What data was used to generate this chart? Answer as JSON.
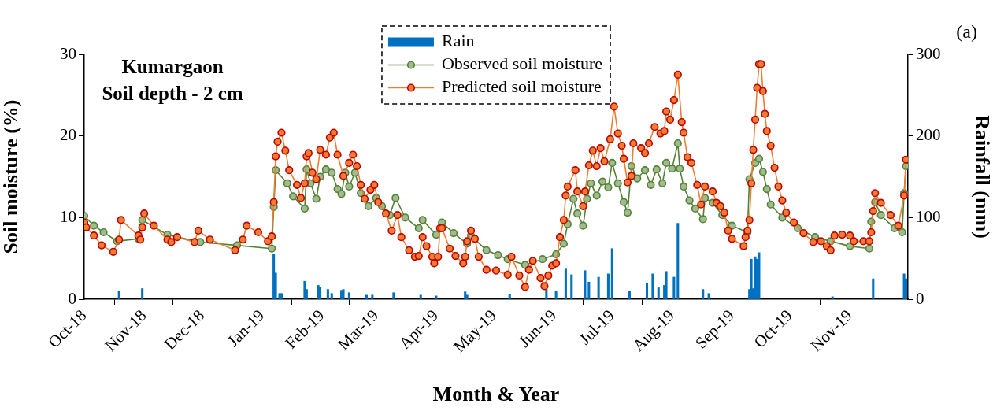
{
  "chart_data": {
    "type": "line",
    "title": "Kumargaon",
    "subtitle": "Soil depth - 2 cm",
    "xlabel": "Month & Year",
    "ylabel": "Soil moisture (%)",
    "y2label": "Rainfall (mm)",
    "annotations": [
      "(a)"
    ],
    "xlim": [
      "2018-10-01",
      "2019-12-01"
    ],
    "xticks": [
      {
        "value": "2018-10-01",
        "label": "Oct-18"
      },
      {
        "value": "2018-11-01",
        "label": "Nov-18"
      },
      {
        "value": "2018-12-01",
        "label": "Dec-18"
      },
      {
        "value": "2019-01-01",
        "label": "Jan-19"
      },
      {
        "value": "2019-02-01",
        "label": "Feb-19"
      },
      {
        "value": "2019-03-01",
        "label": "Mar-19"
      },
      {
        "value": "2019-04-01",
        "label": "Apr-19"
      },
      {
        "value": "2019-05-01",
        "label": "May-19"
      },
      {
        "value": "2019-06-01",
        "label": "Jun-19"
      },
      {
        "value": "2019-07-01",
        "label": "Jul-19"
      },
      {
        "value": "2019-08-01",
        "label": "Aug-19"
      },
      {
        "value": "2019-09-01",
        "label": "Sep-19"
      },
      {
        "value": "2019-10-01",
        "label": "Oct-19"
      },
      {
        "value": "2019-11-01",
        "label": "Nov-19"
      }
    ],
    "ylim": [
      0,
      30
    ],
    "yticks": [
      0,
      10,
      20,
      30
    ],
    "y2lim": [
      0,
      300
    ],
    "y2ticks": [
      0,
      100,
      200,
      300
    ],
    "grid": false,
    "legend": "top",
    "marker": "circle",
    "line_style": "solid",
    "series": [
      {
        "name": "Rain",
        "type": "bar",
        "axis": "y2",
        "color": "#0070c0",
        "x": [
          "2018-10-19",
          "2018-10-31",
          "2019-01-07",
          "2019-01-08",
          "2019-01-10",
          "2019-01-11",
          "2019-01-23",
          "2019-01-24",
          "2019-01-30",
          "2019-01-31",
          "2019-02-04",
          "2019-02-06",
          "2019-02-11",
          "2019-02-12",
          "2019-02-15",
          "2019-02-24",
          "2019-02-27",
          "2019-03-10",
          "2019-03-24",
          "2019-04-01",
          "2019-04-16",
          "2019-04-17",
          "2019-05-09",
          "2019-05-28",
          "2019-06-02",
          "2019-06-07",
          "2019-06-10",
          "2019-06-17",
          "2019-06-19",
          "2019-06-24",
          "2019-06-29",
          "2019-07-01",
          "2019-07-10",
          "2019-07-19",
          "2019-07-22",
          "2019-07-25",
          "2019-07-28",
          "2019-07-29",
          "2019-08-02",
          "2019-08-04",
          "2019-08-17",
          "2019-08-20",
          "2019-09-10",
          "2019-09-11",
          "2019-09-12",
          "2019-09-13",
          "2019-09-14",
          "2019-09-15",
          "2019-10-23",
          "2019-11-13",
          "2019-11-29",
          "2019-11-30"
        ],
        "values": [
          10,
          13,
          55,
          32,
          7,
          7,
          22,
          12,
          17,
          15,
          12,
          7,
          11,
          12,
          8,
          5,
          5,
          8,
          5,
          4,
          9,
          5,
          6,
          12,
          10,
          37,
          30,
          35,
          21,
          27,
          31,
          62,
          10,
          20,
          31,
          14,
          17,
          34,
          27,
          93,
          12,
          7,
          12,
          49,
          13,
          52,
          49,
          57,
          3,
          25,
          31,
          25
        ]
      },
      {
        "name": "Observed soil moisture",
        "color": "#548235",
        "x": [
          "2018-10-01",
          "2018-10-06",
          "2018-10-11",
          "2018-10-18",
          "2018-10-29",
          "2018-10-31",
          "2018-11-13",
          "2018-11-30",
          "2018-12-19",
          "2019-01-06",
          "2019-01-07",
          "2019-01-08",
          "2019-01-14",
          "2019-01-17",
          "2019-01-23",
          "2019-01-24",
          "2019-01-26",
          "2019-01-29",
          "2019-01-31",
          "2019-02-03",
          "2019-02-06",
          "2019-02-09",
          "2019-02-11",
          "2019-02-13",
          "2019-02-15",
          "2019-02-18",
          "2019-02-21",
          "2019-02-25",
          "2019-03-01",
          "2019-03-04",
          "2019-03-08",
          "2019-03-11",
          "2019-03-16",
          "2019-03-23",
          "2019-03-25",
          "2019-04-01",
          "2019-04-04",
          "2019-04-10",
          "2019-04-17",
          "2019-04-19",
          "2019-04-27",
          "2019-05-03",
          "2019-05-08",
          "2019-05-17",
          "2019-05-26",
          "2019-06-02",
          "2019-06-06",
          "2019-06-08",
          "2019-06-11",
          "2019-06-13",
          "2019-06-16",
          "2019-06-18",
          "2019-06-20",
          "2019-06-23",
          "2019-06-26",
          "2019-06-29",
          "2019-07-01",
          "2019-07-04",
          "2019-07-07",
          "2019-07-09",
          "2019-07-11",
          "2019-07-14",
          "2019-07-18",
          "2019-07-21",
          "2019-07-24",
          "2019-07-27",
          "2019-07-29",
          "2019-08-01",
          "2019-08-04",
          "2019-08-05",
          "2019-08-07",
          "2019-08-10",
          "2019-08-13",
          "2019-08-17",
          "2019-08-18",
          "2019-08-22",
          "2019-08-27",
          "2019-09-01",
          "2019-09-09",
          "2019-09-10",
          "2019-09-13",
          "2019-09-15",
          "2019-09-17",
          "2019-09-19",
          "2019-09-21",
          "2019-09-27",
          "2019-10-05",
          "2019-10-14",
          "2019-10-22",
          "2019-11-01",
          "2019-11-11",
          "2019-11-12",
          "2019-11-14",
          "2019-11-17",
          "2019-11-24",
          "2019-11-28",
          "2019-11-29",
          "2019-11-30"
        ],
        "values": [
          10.2,
          9.0,
          8.2,
          7.1,
          7.4,
          9.7,
          7.9,
          7.0,
          6.6,
          6.2,
          11.3,
          15.8,
          14.2,
          12.6,
          11.1,
          15.9,
          14.2,
          12.3,
          15.0,
          15.9,
          15.5,
          13.5,
          12.9,
          15.5,
          13.8,
          15.5,
          13.0,
          11.4,
          12.4,
          11.4,
          10.3,
          12.4,
          10.0,
          8.7,
          9.7,
          7.9,
          9.4,
          8.1,
          6.8,
          7.8,
          6.0,
          5.4,
          4.9,
          4.2,
          4.9,
          5.5,
          6.8,
          9.2,
          12.3,
          10.5,
          9.0,
          12.3,
          14.2,
          12.7,
          14.4,
          13.7,
          16.7,
          14.2,
          11.9,
          10.6,
          16.3,
          14.8,
          15.8,
          14.0,
          15.9,
          14.2,
          16.7,
          16.0,
          19.1,
          16.0,
          13.8,
          12.1,
          11.1,
          9.8,
          12.4,
          11.8,
          10.3,
          9.0,
          8.2,
          14.7,
          16.7,
          17.2,
          15.6,
          13.5,
          11.6,
          10.0,
          8.7,
          7.6,
          7.1,
          6.5,
          6.2,
          9.5,
          11.9,
          10.3,
          8.7,
          8.2,
          13.0,
          16.3
        ]
      },
      {
        "name": "Predicted soil moisture",
        "color": "#ed7d31",
        "x": [
          "2018-10-01",
          "2018-10-02",
          "2018-10-06",
          "2018-10-10",
          "2018-10-16",
          "2018-10-19",
          "2018-10-20",
          "2018-10-29",
          "2018-10-30",
          "2018-10-31",
          "2018-11-01",
          "2018-11-06",
          "2018-11-13",
          "2018-11-15",
          "2018-11-18",
          "2018-11-27",
          "2018-11-29",
          "2018-12-05",
          "2018-12-18",
          "2018-12-22",
          "2018-12-24",
          "2018-12-30",
          "2019-01-04",
          "2019-01-06",
          "2019-01-07",
          "2019-01-08",
          "2019-01-09",
          "2019-01-11",
          "2019-01-13",
          "2019-01-15",
          "2019-01-19",
          "2019-01-21",
          "2019-01-23",
          "2019-01-24",
          "2019-01-25",
          "2019-01-27",
          "2019-01-29",
          "2019-01-31",
          "2019-02-03",
          "2019-02-05",
          "2019-02-07",
          "2019-02-09",
          "2019-02-12",
          "2019-02-15",
          "2019-02-17",
          "2019-02-19",
          "2019-02-21",
          "2019-02-23",
          "2019-02-26",
          "2019-02-28",
          "2019-03-02",
          "2019-03-06",
          "2019-03-09",
          "2019-03-12",
          "2019-03-14",
          "2019-03-18",
          "2019-03-21",
          "2019-03-23",
          "2019-03-25",
          "2019-03-27",
          "2019-03-30",
          "2019-03-31",
          "2019-04-02",
          "2019-04-03",
          "2019-04-04",
          "2019-04-08",
          "2019-04-11",
          "2019-04-15",
          "2019-04-16",
          "2019-04-17",
          "2019-04-19",
          "2019-04-21",
          "2019-04-23",
          "2019-04-27",
          "2019-05-02",
          "2019-05-08",
          "2019-05-10",
          "2019-05-14",
          "2019-05-17",
          "2019-05-19",
          "2019-05-21",
          "2019-05-25",
          "2019-05-27",
          "2019-05-29",
          "2019-05-31",
          "2019-06-02",
          "2019-06-04",
          "2019-06-06",
          "2019-06-07",
          "2019-06-08",
          "2019-06-12",
          "2019-06-13",
          "2019-06-16",
          "2019-06-17",
          "2019-06-19",
          "2019-06-21",
          "2019-06-23",
          "2019-06-25",
          "2019-06-27",
          "2019-06-30",
          "2019-07-02",
          "2019-07-04",
          "2019-07-06",
          "2019-07-07",
          "2019-07-09",
          "2019-07-11",
          "2019-07-12",
          "2019-07-16",
          "2019-07-18",
          "2019-07-20",
          "2019-07-23",
          "2019-07-26",
          "2019-07-28",
          "2019-07-29",
          "2019-07-31",
          "2019-08-02",
          "2019-08-04",
          "2019-08-06",
          "2019-08-07",
          "2019-08-09",
          "2019-08-11",
          "2019-08-14",
          "2019-08-16",
          "2019-08-18",
          "2019-08-22",
          "2019-08-24",
          "2019-08-26",
          "2019-08-28",
          "2019-08-30",
          "2019-09-01",
          "2019-09-07",
          "2019-09-08",
          "2019-09-09",
          "2019-09-10",
          "2019-09-11",
          "2019-09-12",
          "2019-09-13",
          "2019-09-14",
          "2019-09-15",
          "2019-09-16",
          "2019-09-17",
          "2019-09-18",
          "2019-09-19",
          "2019-09-21",
          "2019-09-23",
          "2019-09-25",
          "2019-09-27",
          "2019-09-29",
          "2019-10-03",
          "2019-10-08",
          "2019-10-13",
          "2019-10-17",
          "2019-10-20",
          "2019-10-22",
          "2019-10-24",
          "2019-10-28",
          "2019-11-01",
          "2019-11-03",
          "2019-11-08",
          "2019-11-11",
          "2019-11-12",
          "2019-11-13",
          "2019-11-14",
          "2019-11-17",
          "2019-11-22",
          "2019-11-26",
          "2019-11-29",
          "2019-11-30"
        ],
        "values": [
          9.4,
          8.8,
          7.8,
          6.6,
          5.8,
          7.3,
          9.7,
          7.8,
          7.3,
          8.8,
          10.5,
          9.0,
          7.3,
          7.0,
          7.6,
          7.0,
          8.4,
          7.3,
          6.0,
          7.3,
          9.0,
          8.2,
          7.1,
          7.7,
          11.9,
          17.5,
          19.3,
          20.4,
          18.2,
          15.8,
          14.0,
          12.4,
          14.2,
          17.5,
          17.9,
          15.5,
          14.7,
          18.3,
          17.7,
          19.8,
          20.4,
          17.7,
          15.1,
          16.7,
          17.7,
          16.3,
          14.0,
          12.3,
          13.4,
          14.0,
          11.9,
          10.5,
          8.4,
          10.3,
          7.6,
          6.0,
          5.2,
          5.3,
          7.6,
          6.5,
          5.2,
          4.4,
          5.2,
          8.7,
          8.7,
          6.2,
          5.3,
          4.4,
          5.2,
          7.1,
          8.4,
          7.4,
          5.2,
          3.6,
          3.5,
          3.0,
          5.2,
          2.9,
          1.5,
          3.6,
          4.7,
          2.6,
          1.6,
          2.9,
          4.1,
          4.4,
          7.6,
          9.7,
          12.7,
          13.8,
          15.8,
          13.2,
          11.4,
          13.2,
          16.4,
          18.2,
          16.3,
          18.5,
          16.9,
          19.6,
          23.6,
          20.3,
          18.8,
          17.2,
          14.3,
          15.1,
          19.1,
          18.5,
          17.9,
          19.1,
          21.1,
          20.3,
          20.6,
          23.0,
          22.0,
          24.4,
          27.5,
          21.7,
          20.4,
          17.4,
          16.7,
          14.0,
          11.6,
          13.8,
          13.2,
          11.8,
          11.4,
          10.6,
          8.4,
          7.4,
          6.5,
          7.6,
          8.4,
          9.7,
          14.2,
          18.3,
          22.0,
          25.9,
          28.8,
          28.8,
          25.5,
          22.7,
          20.6,
          18.8,
          16.1,
          13.8,
          12.1,
          10.6,
          9.4,
          8.1,
          7.0,
          7.1,
          6.5,
          6.0,
          7.8,
          7.9,
          7.8,
          7.1,
          7.1,
          7.1,
          8.2,
          10.8,
          13.0,
          11.8,
          10.3,
          9.0,
          12.7,
          17.1
        ]
      }
    ]
  }
}
